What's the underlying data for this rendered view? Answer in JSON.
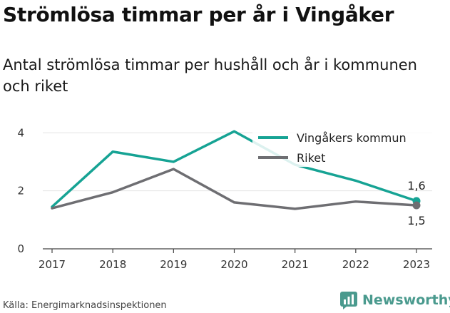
{
  "title": "Strömlösa timmar per år i Vingåker",
  "subtitle": "Antal strömlösa timmar per hushåll och år i kommunen och riket",
  "source": "Källa: Energimarknadsinspektionen",
  "brand": {
    "name": "Newsworthy",
    "icon": "newsworthy-logo-icon",
    "color": "#4a9a8e"
  },
  "chart_data": {
    "type": "line",
    "x": [
      "2017",
      "2018",
      "2019",
      "2020",
      "2021",
      "2022",
      "2023"
    ],
    "ylim": [
      0,
      4.4
    ],
    "yticks": [
      0,
      2,
      4
    ],
    "grid": true,
    "legend": "top-right",
    "series": [
      {
        "name": "Vingåkers kommun",
        "color": "#16a394",
        "values": [
          1.45,
          3.35,
          3.0,
          4.05,
          2.9,
          2.35,
          1.65
        ],
        "end_label": "1,6"
      },
      {
        "name": "Riket",
        "color": "#6e6e72",
        "values": [
          1.4,
          1.95,
          2.75,
          1.6,
          1.38,
          1.63,
          1.5
        ],
        "end_label": "1,5"
      }
    ]
  }
}
